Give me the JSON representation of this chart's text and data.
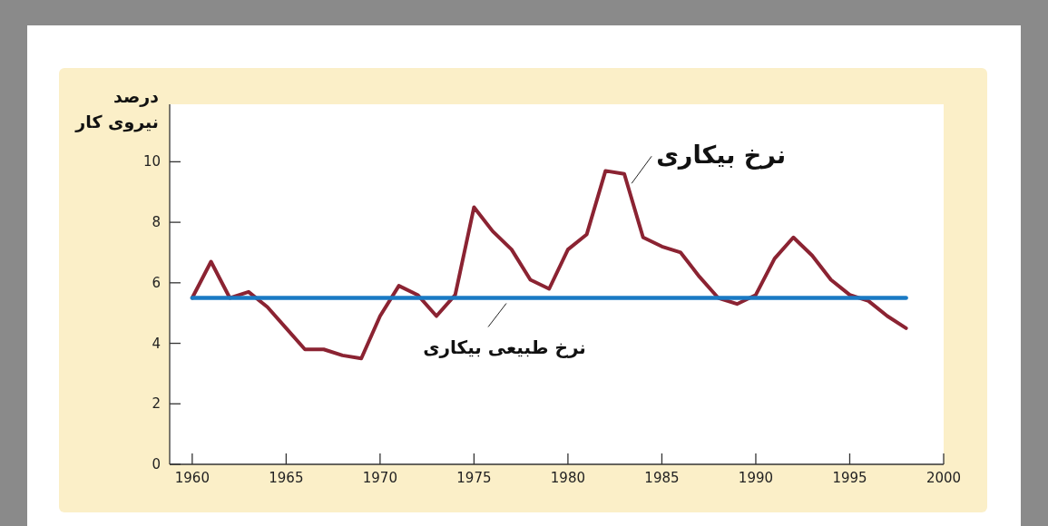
{
  "chart_data": {
    "type": "line",
    "ylabel": "درصد\nنیروی کار",
    "xlim": [
      1958.8,
      2000
    ],
    "xticks": [
      1960,
      1965,
      1970,
      1975,
      1980,
      1985,
      1990,
      1995,
      2000
    ],
    "ylim": [
      0,
      11.9
    ],
    "yticks": [
      0,
      2,
      4,
      6,
      8,
      10
    ],
    "grid": false,
    "marker": "none",
    "line_style": "solid",
    "series": [
      {
        "name": "نرخ بیکاری",
        "color": "#8b2332",
        "x": [
          1960,
          1961,
          1962,
          1963,
          1964,
          1965,
          1966,
          1967,
          1968,
          1969,
          1970,
          1971,
          1972,
          1973,
          1974,
          1975,
          1976,
          1977,
          1978,
          1979,
          1980,
          1981,
          1982,
          1983,
          1984,
          1985,
          1986,
          1987,
          1988,
          1989,
          1990,
          1991,
          1992,
          1993,
          1994,
          1995,
          1996,
          1997,
          1998
        ],
        "values": [
          5.5,
          6.7,
          5.5,
          5.7,
          5.2,
          4.5,
          3.8,
          3.8,
          3.6,
          3.5,
          4.9,
          5.9,
          5.6,
          4.9,
          5.6,
          8.5,
          7.7,
          7.1,
          6.1,
          5.8,
          7.1,
          7.6,
          9.7,
          9.6,
          7.5,
          7.2,
          7.0,
          6.2,
          5.5,
          5.3,
          5.6,
          6.8,
          7.5,
          6.9,
          6.1,
          5.6,
          5.4,
          4.9,
          4.5
        ]
      },
      {
        "name": "نرخ طبیعی بیکاری",
        "color": "#1a7ac4",
        "x": [
          1960,
          1998
        ],
        "values": [
          5.5,
          5.5
        ]
      }
    ]
  }
}
